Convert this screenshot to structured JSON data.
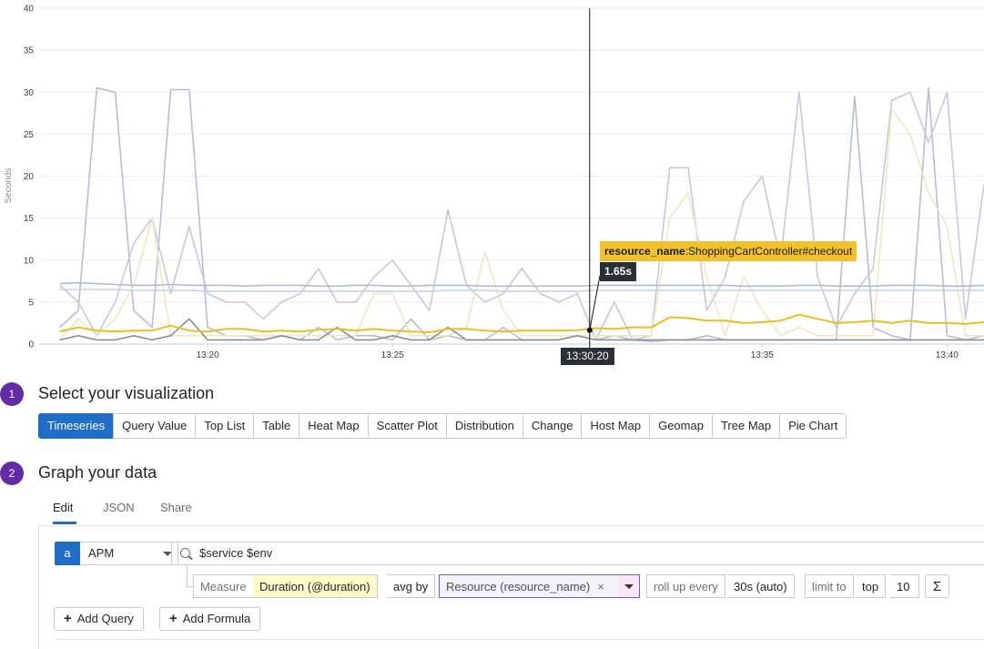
{
  "chart_data": {
    "type": "line",
    "ylabel": "Seconds",
    "ylim": [
      0,
      40
    ],
    "y_ticks": [
      "0",
      "5",
      "10",
      "15",
      "20",
      "25",
      "30",
      "35",
      "40"
    ],
    "x_ticks": [
      "13:20",
      "13:25",
      "13:30:20",
      "13:35",
      "13:40"
    ],
    "x": [
      "13:16:00",
      "13:16:30",
      "13:17:00",
      "13:17:30",
      "13:18:00",
      "13:18:30",
      "13:19:00",
      "13:19:30",
      "13:20:00",
      "13:20:30",
      "13:21:00",
      "13:21:30",
      "13:22:00",
      "13:22:30",
      "13:23:00",
      "13:23:30",
      "13:24:00",
      "13:24:30",
      "13:25:00",
      "13:25:30",
      "13:26:00",
      "13:26:30",
      "13:27:00",
      "13:27:30",
      "13:28:00",
      "13:28:30",
      "13:29:00",
      "13:29:30",
      "13:30:00",
      "13:30:30",
      "13:31:00",
      "13:31:30",
      "13:32:00",
      "13:32:30",
      "13:33:00",
      "13:33:30",
      "13:34:00",
      "13:34:30",
      "13:35:00",
      "13:35:30",
      "13:36:00",
      "13:36:30",
      "13:37:00",
      "13:37:30",
      "13:38:00",
      "13:38:30",
      "13:39:00",
      "13:39:30",
      "13:40:00",
      "13:40:30",
      "13:41:00"
    ],
    "series": [
      {
        "color": "#b7bed4",
        "values": [
          2,
          4,
          30.5,
          30,
          4,
          2,
          30.3,
          30.3,
          2,
          1,
          1,
          0.5,
          1,
          0.5,
          2,
          0.5,
          1,
          1,
          0.5,
          3,
          0.5,
          1,
          0.5,
          0.5,
          2,
          0.5,
          0.5,
          0.5,
          1,
          0.5,
          1,
          0.5,
          0.3,
          0.5,
          0.5,
          1,
          0.5,
          0.5,
          0.5,
          0.5,
          0.5,
          0.5,
          0.5,
          29.5,
          2,
          1,
          0.5,
          30.5,
          1,
          0.5,
          1
        ]
      },
      {
        "color": "#c9c7df",
        "values": [
          7,
          5,
          1,
          5,
          12,
          15,
          6,
          14,
          6,
          5,
          5,
          3,
          5,
          6,
          9,
          5,
          5,
          8,
          10,
          7,
          4,
          16,
          7,
          5,
          6,
          9,
          6,
          5,
          6,
          0.5,
          5,
          0.5,
          1,
          21,
          21,
          4,
          8,
          17,
          20,
          10,
          30,
          8,
          2,
          6,
          9,
          29,
          30,
          24,
          30,
          3,
          19
        ]
      },
      {
        "color": "#f1e6bf",
        "values": [
          0.5,
          3,
          1,
          3,
          7,
          15,
          1,
          1,
          1,
          1,
          1,
          1,
          1,
          1,
          1,
          1,
          1,
          6,
          6,
          1,
          1,
          1,
          2,
          11,
          4,
          1,
          1,
          1,
          1,
          1,
          1,
          1,
          1,
          15,
          18,
          8,
          1,
          8,
          4,
          1,
          2,
          1,
          1,
          1,
          1,
          28,
          25,
          18,
          14,
          1,
          1
        ]
      },
      {
        "color": "#aabdd6",
        "values": [
          7.2,
          7.3,
          7.2,
          7.1,
          7.0,
          7.0,
          7.1,
          7.0,
          7.0,
          7.0,
          6.9,
          7.0,
          7.0,
          7.0,
          6.9,
          6.9,
          7.0,
          7.0,
          6.9,
          6.9,
          7.0,
          7.0,
          7.0,
          6.9,
          6.9,
          6.9,
          6.9,
          6.9,
          6.9,
          7.0,
          7.0,
          7.0,
          7.0,
          7.0,
          7.0,
          7.0,
          7.0,
          6.9,
          6.9,
          6.9,
          7.0,
          7.0,
          6.9,
          6.9,
          6.9,
          7.0,
          7.0,
          7.0,
          6.9,
          6.9,
          7.0
        ]
      },
      {
        "color": "#c6d2e3",
        "values": [
          6.5,
          6.5,
          6.5,
          6.5,
          6.4,
          6.4,
          6.4,
          6.4,
          6.3,
          6.3,
          6.3,
          6.3,
          6.3,
          6.3,
          6.3,
          6.3,
          6.3,
          6.3,
          6.3,
          6.3,
          6.3,
          6.4,
          6.4,
          6.4,
          6.3,
          6.3,
          6.3,
          6.3,
          6.3,
          6.4,
          6.4,
          6.4,
          6.4,
          6.4,
          6.4,
          6.4,
          6.4,
          6.4,
          6.4,
          6.4,
          6.4,
          6.4,
          6.4,
          6.4,
          6.4,
          6.4,
          6.4,
          6.4,
          6.4,
          6.4,
          6.4
        ]
      },
      {
        "color": "#8d8d99",
        "values": [
          0.5,
          1,
          0.5,
          0.5,
          1,
          0.5,
          1,
          3,
          0.5,
          0.5,
          0.5,
          0.5,
          1,
          0.5,
          0.5,
          2,
          0.5,
          0.5,
          1,
          0.5,
          0.5,
          2,
          0.5,
          0.5,
          0.5,
          0.5,
          0.5,
          0.5,
          1,
          0.5,
          0.5,
          0.5,
          0.5,
          0.5,
          0.5,
          0.5,
          0.5,
          0.5,
          0.5,
          0.5,
          0.5,
          0.5,
          0.5,
          0.5,
          0.5,
          0.5,
          0.5,
          0.5,
          0.5,
          0.5,
          0.5
        ]
      },
      {
        "color": "#efbc22",
        "values": [
          1.5,
          2,
          1.6,
          1.5,
          1.6,
          1.6,
          2.2,
          1.6,
          1.5,
          1.8,
          1.8,
          1.5,
          1.6,
          1.5,
          1.7,
          1.8,
          1.6,
          1.8,
          1.6,
          1.5,
          1.4,
          1.8,
          1.8,
          1.6,
          1.5,
          1.6,
          1.6,
          1.6,
          1.65,
          1.9,
          1.8,
          2.0,
          2.0,
          3.2,
          3.1,
          2.8,
          2.8,
          2.5,
          2.6,
          2.8,
          3.5,
          3.0,
          2.5,
          2.6,
          2.8,
          2.5,
          2.8,
          2.5,
          2.5,
          2.4,
          2.6
        ]
      }
    ],
    "highlight": {
      "x": "13:30:20",
      "value": 1.65,
      "value_label": "1.65s",
      "resource_key": "resource_name",
      "resource_value": ":ShoppingCartController#checkout"
    }
  },
  "steps": {
    "one": {
      "number": "1",
      "title": "Select your visualization"
    },
    "two": {
      "number": "2",
      "title": "Graph your data"
    }
  },
  "viz_options": [
    "Timeseries",
    "Query Value",
    "Top List",
    "Table",
    "Heat Map",
    "Scatter Plot",
    "Distribution",
    "Change",
    "Host Map",
    "Geomap",
    "Tree Map",
    "Pie Chart"
  ],
  "tabs": {
    "edit": "Edit",
    "json": "JSON",
    "share": "Share"
  },
  "query": {
    "letter": "a",
    "source": "APM",
    "search": "$service $env",
    "measure_label": "Measure",
    "measure_value": "Duration (@duration)",
    "agg": "avg by",
    "group_by": "Resource (resource_name)",
    "group_remove": "×",
    "rollup_label": "roll up every",
    "rollup_value": "30s (auto)",
    "limit_label": "limit to",
    "limit_dir": "top",
    "limit_num": "10",
    "function_icon": "Σ"
  },
  "buttons": {
    "add_query": "Add Query",
    "add_formula": "Add Formula",
    "plus": "+"
  }
}
